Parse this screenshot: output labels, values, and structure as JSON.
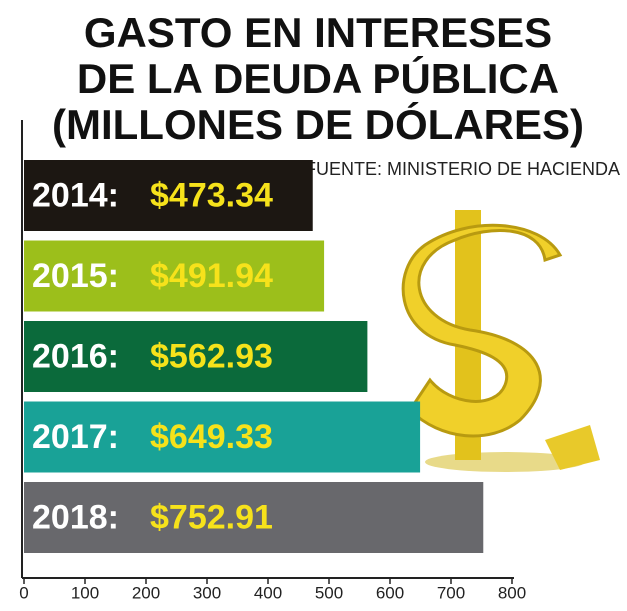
{
  "chart_data": {
    "type": "bar",
    "orientation": "horizontal",
    "title": [
      "GASTO EN INTERESES",
      "DE LA DEUDA PÚBLICA",
      "(MILLONES DE DÓLARES)"
    ],
    "source": "FUENTE: MINISTERIO DE HACIENDA",
    "categories": [
      "2014:",
      "2015:",
      "2016:",
      "2017:",
      "2018:"
    ],
    "values": [
      473.34,
      491.94,
      562.93,
      649.33,
      752.91
    ],
    "value_labels": [
      "$473.34",
      "$491.94",
      "$562.93",
      "$649.33",
      "$752.91"
    ],
    "colors": [
      "#1c1712",
      "#9cbf1b",
      "#0b6a3b",
      "#19a297",
      "#68686c"
    ],
    "xlim": [
      0,
      800
    ],
    "xticks": [
      0,
      100,
      200,
      300,
      400,
      500,
      600,
      700,
      800
    ]
  }
}
